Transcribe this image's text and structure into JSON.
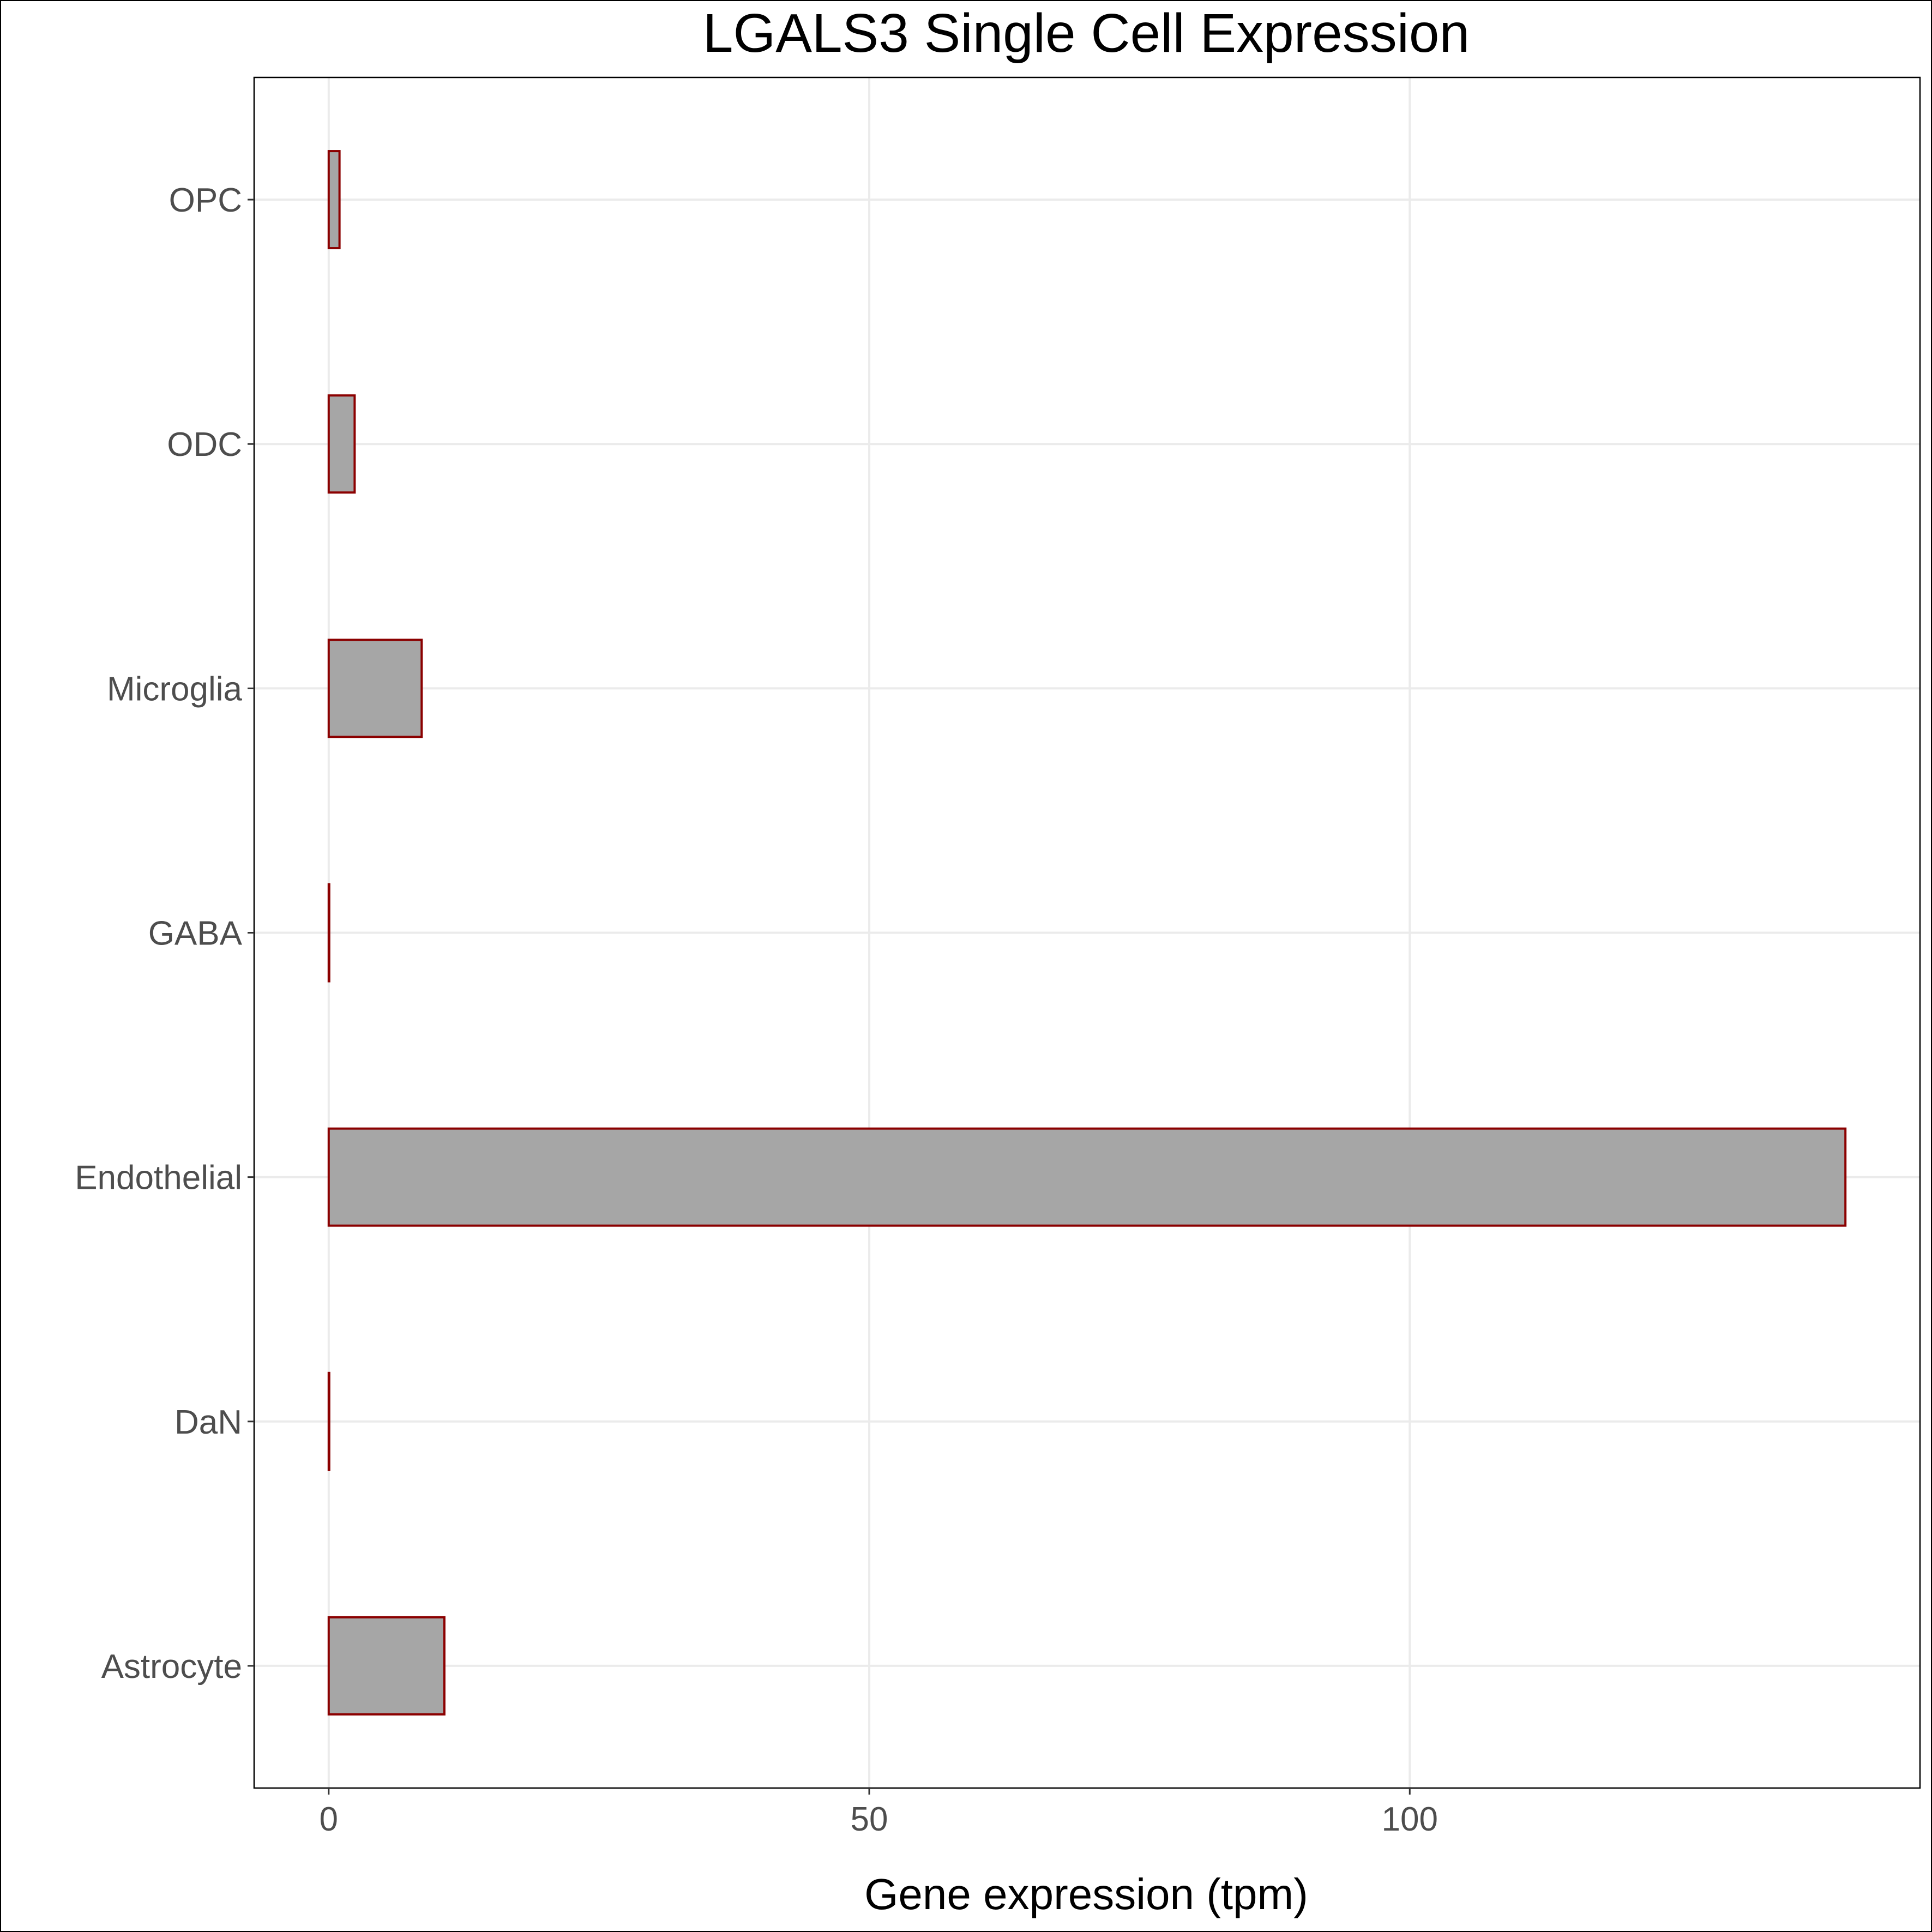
{
  "chart_data": {
    "type": "bar",
    "orientation": "horizontal",
    "title": "LGALS3 Single Cell Expression",
    "xlabel": "Gene expression (tpm)",
    "ylabel": "",
    "categories": [
      "Astrocyte",
      "DaN",
      "Endothelial",
      "GABA",
      "Microglia",
      "ODC",
      "OPC"
    ],
    "values": [
      10.7,
      0.05,
      140.3,
      0.05,
      8.6,
      2.4,
      1.0
    ],
    "xlim": [
      -6.9,
      147.2
    ],
    "xticks": [
      0,
      50,
      100
    ],
    "grid": true,
    "legend": "none",
    "colors": {
      "fill": "#a6a6a6",
      "stroke": "#8b0000",
      "grid": "#ebebeb",
      "panel_border": "#000000"
    }
  }
}
